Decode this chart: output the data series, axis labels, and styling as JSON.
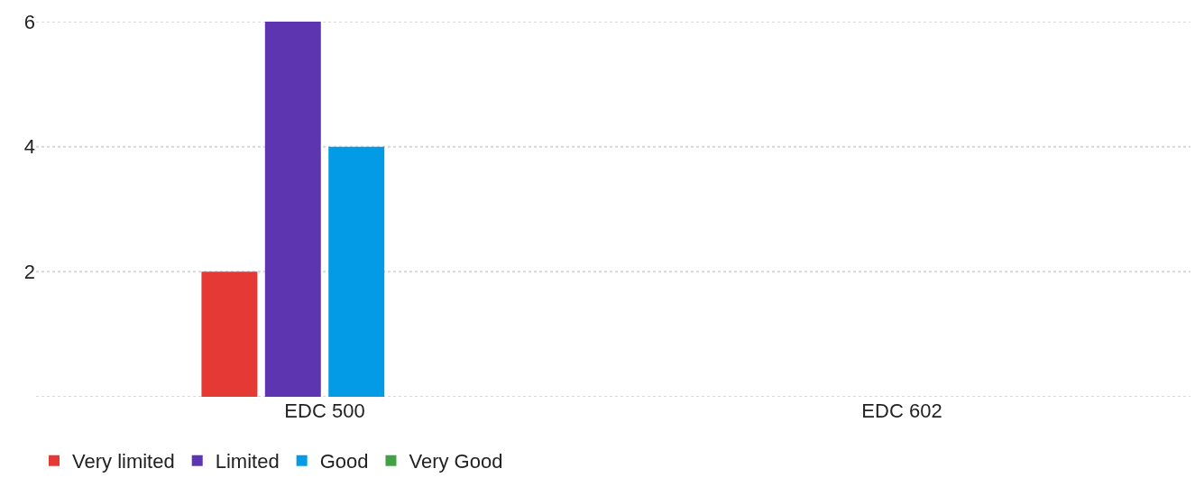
{
  "chart_data": {
    "type": "bar",
    "categories": [
      "EDC 500",
      "EDC 602"
    ],
    "series": [
      {
        "name": "Very limited",
        "color": "#e53935",
        "values": [
          2,
          0
        ]
      },
      {
        "name": "Limited",
        "color": "#5e35b1",
        "values": [
          6,
          0
        ]
      },
      {
        "name": "Good",
        "color": "#039be5",
        "values": [
          4,
          0
        ]
      },
      {
        "name": "Very Good",
        "color": "#43a047",
        "values": [
          0,
          0
        ]
      }
    ],
    "ylim": [
      0,
      6
    ],
    "yticks": [
      {
        "value": 0,
        "label": null
      },
      2,
      4,
      6
    ],
    "grid": "y",
    "legend": "bottom left"
  }
}
